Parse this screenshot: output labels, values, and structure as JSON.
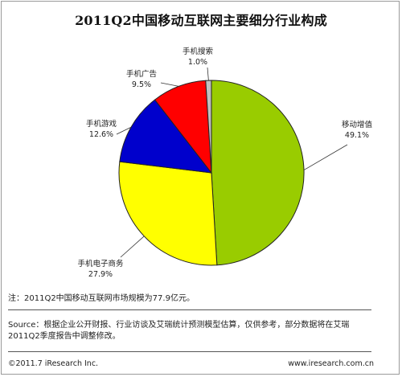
{
  "chart_data": {
    "type": "pie",
    "title": "2011Q2中国移动互联网主要细分行业构成",
    "slices": [
      {
        "label": "移动增值",
        "value_label": "49.1%",
        "value": 49.1,
        "color": "#99cc00"
      },
      {
        "label": "手机电子商务",
        "value_label": "27.9%",
        "value": 27.9,
        "color": "#ffff00"
      },
      {
        "label": "手机游戏",
        "value_label": "12.6%",
        "value": 12.6,
        "color": "#0000cc"
      },
      {
        "label": "手机广告",
        "value_label": "9.5%",
        "value": 9.5,
        "color": "#ff0000"
      },
      {
        "label": "手机搜索",
        "value_label": "1.0%",
        "value": 1.0,
        "color": "#c0c0c0"
      }
    ]
  },
  "note": "注：2011Q2中国移动互联网市场规模为77.9亿元。",
  "source": "Source：根据企业公开财报、行业访谈及艾瑞统计预测模型估算，仅供参考，部分数据将在艾瑞2011Q2季度报告中调整修改。",
  "copyright": "©2011.7 iResearch Inc.",
  "website": "www.iresearch.com.cn"
}
